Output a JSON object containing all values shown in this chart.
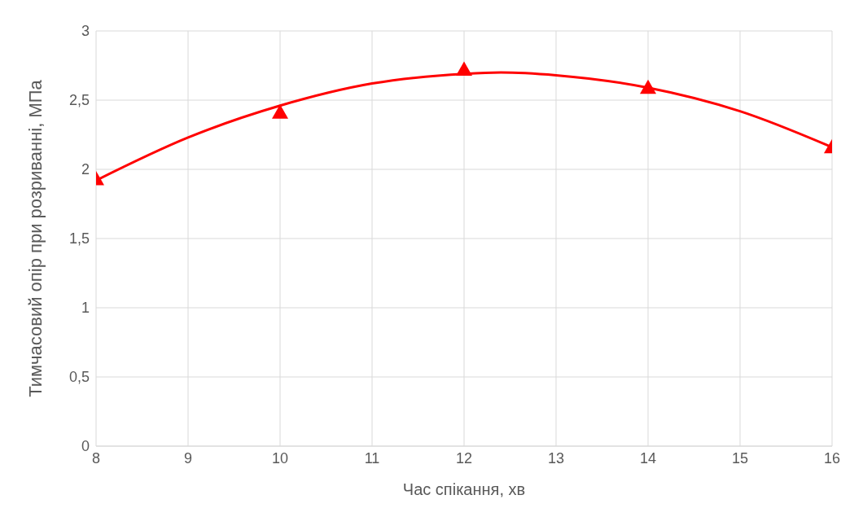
{
  "chart_data": {
    "type": "scatter",
    "xlabel": "Час спікання, хв",
    "ylabel": "Тимчасовий опір при розриванні, МПа",
    "xlim": [
      8,
      16
    ],
    "xticks": [
      8,
      9,
      10,
      11,
      12,
      13,
      14,
      15,
      16
    ],
    "ylim": [
      0,
      3
    ],
    "yticks": [
      0,
      {
        "value": 0.5,
        "label": "0,5"
      },
      1,
      {
        "value": 1.5,
        "label": "1,5"
      },
      2,
      {
        "value": 2.5,
        "label": "2,5"
      },
      3
    ],
    "grid": true,
    "series": [
      {
        "color": "#ff0000",
        "marker": "triangle",
        "x": [
          8,
          10,
          12,
          14,
          16
        ],
        "values": [
          1.93,
          2.41,
          2.72,
          2.59,
          2.16
        ]
      },
      {
        "type": "line",
        "color": "#ff0000",
        "marker": "none",
        "line_style": "solid",
        "x": [
          8,
          9,
          10,
          11,
          12,
          12.4,
          13,
          14,
          15,
          16
        ],
        "values": [
          1.92,
          2.23,
          2.46,
          2.62,
          2.69,
          2.7,
          2.68,
          2.59,
          2.42,
          2.16
        ]
      }
    ]
  }
}
